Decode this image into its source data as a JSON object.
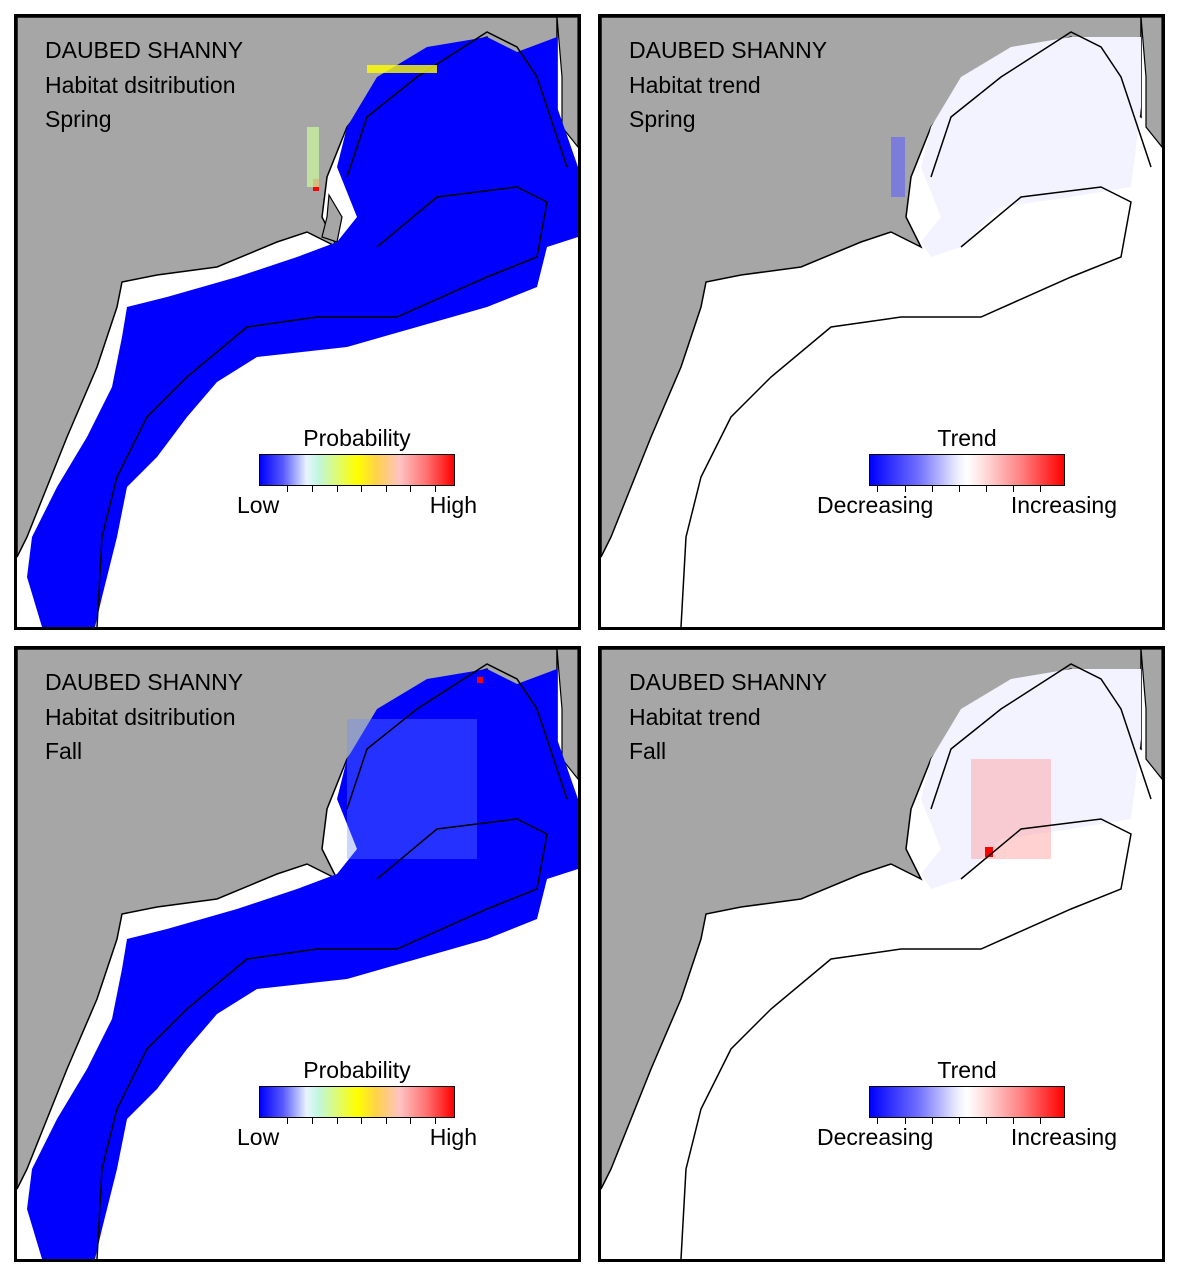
{
  "figure": {
    "panels": [
      {
        "id": "spring-distribution",
        "species": "DAUBED SHANNY",
        "map_type": "Habitat dsitribution",
        "season": "Spring",
        "legend": {
          "title": "Probability",
          "low_label": "Low",
          "high_label": "High"
        }
      },
      {
        "id": "spring-trend",
        "species": "DAUBED SHANNY",
        "map_type": "Habitat trend",
        "season": "Spring",
        "legend": {
          "title": "Trend",
          "low_label": "Decreasing",
          "high_label": "Increasing"
        }
      },
      {
        "id": "fall-distribution",
        "species": "DAUBED SHANNY",
        "map_type": "Habitat dsitribution",
        "season": "Fall",
        "legend": {
          "title": "Probability",
          "low_label": "Low",
          "high_label": "High"
        }
      },
      {
        "id": "fall-trend",
        "species": "DAUBED SHANNY",
        "map_type": "Habitat trend",
        "season": "Fall",
        "legend": {
          "title": "Trend",
          "low_label": "Decreasing",
          "high_label": "Increasing"
        }
      }
    ]
  },
  "colors": {
    "land": "#a6a6a6",
    "coast_water": "#ffffff",
    "low_probability": "#0000ff",
    "high_probability": "#ff0000",
    "mid_probability": "#ffff00",
    "trend_decreasing": "#0000ff",
    "trend_increasing": "#ff0000",
    "outline": "#000000"
  }
}
